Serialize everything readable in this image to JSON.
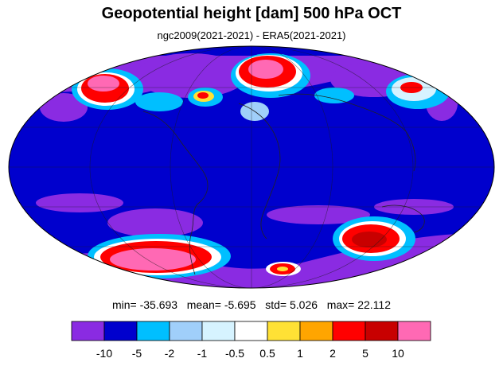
{
  "title": "Geopotential height [dam] 500 hPa OCT",
  "subtitle": "ngc2009(2021-2021) - ERA5(2021-2021)",
  "stats": {
    "min_label": "min=",
    "min": "-35.693",
    "mean_label": "mean=",
    "mean": "-5.695",
    "std_label": "std=",
    "std": "5.026",
    "max_label": "max=",
    "max": "22.112"
  },
  "colorbar": {
    "colors": [
      "#8a2be2",
      "#0000cd",
      "#00bfff",
      "#a0cffa",
      "#d6f3ff",
      "#ffffff",
      "#ffe135",
      "#ffa500",
      "#ff0000",
      "#c80000",
      "#ff69b4"
    ],
    "labels": [
      "-10",
      "-5",
      "-2",
      "-1",
      "-0.5",
      "0.5",
      "1",
      "2",
      "5",
      "10"
    ]
  },
  "map": {
    "projection": "Mollweide",
    "background_color": "#0000cd"
  }
}
